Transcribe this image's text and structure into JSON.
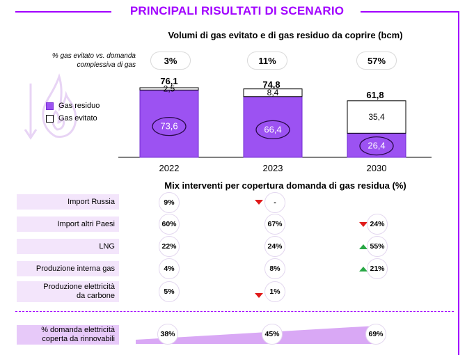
{
  "title": "PRINCIPALI RISULTATI DI SCENARIO",
  "colors": {
    "accent": "#a100ff",
    "residuo": "#9c52f2",
    "evitato": "#ffffff",
    "label_bg": "#f3e5fb",
    "down": "#e01b1b",
    "up": "#28a745"
  },
  "chart_data": [
    {
      "type": "bar",
      "stacked": true,
      "title": "Volumi di gas evitato e di gas residuo da coprire (bcm)",
      "categories": [
        "2022",
        "2023",
        "2030"
      ],
      "series": [
        {
          "name": "Gas residuo",
          "values": [
            73.6,
            66.4,
            26.4
          ],
          "labels": [
            "73,6",
            "66,4",
            "26,4"
          ]
        },
        {
          "name": "Gas evitato",
          "values": [
            2.5,
            8.4,
            35.4
          ],
          "labels": [
            "2,5",
            "8,4",
            "35,4"
          ]
        }
      ],
      "totals": [
        "76,1",
        "74,8",
        "61,8"
      ],
      "pct_label": "% gas evitato vs. domanda complessiva di gas",
      "pct_values": [
        "3%",
        "11%",
        "57%"
      ],
      "ylim": [
        0,
        80
      ],
      "legend": "left"
    },
    {
      "type": "table",
      "title": "Mix interventi per copertura domanda di gas residua (%)",
      "columns": [
        "2022",
        "2023",
        "2030"
      ],
      "rows": [
        {
          "label": "Import Russia",
          "values": [
            "9%",
            "-",
            ""
          ],
          "trend": [
            "",
            "down",
            ""
          ]
        },
        {
          "label": "Import altri Paesi",
          "values": [
            "60%",
            "67%",
            "24%"
          ],
          "trend": [
            "",
            "",
            "down"
          ]
        },
        {
          "label": "LNG",
          "values": [
            "22%",
            "24%",
            "55%"
          ],
          "trend": [
            "",
            "",
            "up"
          ]
        },
        {
          "label": "Produzione interna gas",
          "values": [
            "4%",
            "8%",
            "21%"
          ],
          "trend": [
            "",
            "",
            "up"
          ]
        },
        {
          "label": "Produzione elettricità da carbone",
          "values": [
            "5%",
            "1%",
            ""
          ],
          "trend": [
            "",
            "down",
            ""
          ]
        }
      ],
      "renewables": {
        "label": "% domanda elettricità coperta da rinnovabili",
        "values": [
          "38%",
          "45%",
          "69%"
        ]
      }
    }
  ]
}
